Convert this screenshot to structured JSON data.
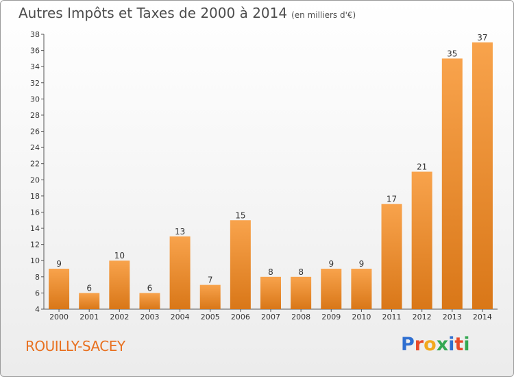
{
  "title": "Autres Impôts et Taxes de 2000 à 2014",
  "subtitle": "(en milliers d'€)",
  "commune": "ROUILLY-SACEY",
  "logo": {
    "letters": [
      "P",
      "r",
      "o",
      "x",
      "i",
      "t",
      "i"
    ],
    "colors": [
      "#2f6fd1",
      "#e84a2a",
      "#f2a81d",
      "#34a853",
      "#2f6fd1",
      "#e84a2a",
      "#34a853"
    ]
  },
  "colors": {
    "bar_light": "#f8a34c",
    "bar_dark": "#d97718",
    "accent": "#e8701f",
    "text": "#4d4d4d"
  },
  "chart_data": {
    "type": "bar",
    "title": "Autres Impôts et Taxes de 2000 à 2014",
    "subtitle": "(en milliers d'€)",
    "categories": [
      "2000",
      "2001",
      "2002",
      "2003",
      "2004",
      "2005",
      "2006",
      "2007",
      "2008",
      "2009",
      "2010",
      "2011",
      "2012",
      "2013",
      "2014"
    ],
    "values": [
      9,
      6,
      10,
      6,
      13,
      7,
      15,
      8,
      8,
      9,
      9,
      17,
      21,
      35,
      37
    ],
    "ylim": [
      4,
      38
    ],
    "yticks": [
      4,
      6,
      8,
      10,
      12,
      14,
      16,
      18,
      20,
      22,
      24,
      26,
      28,
      30,
      32,
      34,
      36,
      38
    ],
    "grid": false,
    "legend": "none"
  }
}
